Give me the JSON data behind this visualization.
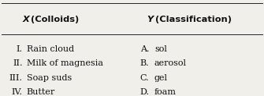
{
  "title_x": "X",
  "title_x_suffix": " (Colloids)",
  "title_y": "Y",
  "title_y_suffix": " (Classification)",
  "rows": [
    {
      "num": "I.",
      "colloid": "Rain cloud",
      "letter": "A.",
      "classification": "sol"
    },
    {
      "num": "II.",
      "colloid": "Milk of magnesia",
      "letter": "B.",
      "classification": "aerosol"
    },
    {
      "num": "III.",
      "colloid": "Soap suds",
      "letter": "C.",
      "classification": "gel"
    },
    {
      "num": "IV.",
      "colloid": "Butter",
      "letter": "D.",
      "classification": "foam"
    }
  ],
  "bg_color": "#f0efea",
  "line_color": "#222222",
  "text_color": "#111111",
  "font_size": 8.0,
  "header_font_size": 8.2
}
